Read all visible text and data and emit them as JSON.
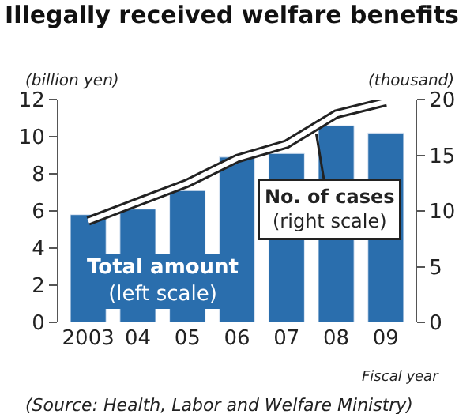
{
  "chart_data": {
    "type": "bar",
    "title": "Illegally received welfare benefits",
    "ylabel": "(billion yen)",
    "y2label": "(thousand)",
    "xlabel": "Fiscal year",
    "categories": [
      "2003",
      "04",
      "05",
      "06",
      "07",
      "08",
      "09"
    ],
    "series": [
      {
        "name": "Total amount\n(left scale)",
        "color": "#2a6ead",
        "values": [
          5.8,
          6.1,
          7.1,
          8.9,
          9.1,
          10.6,
          10.2
        ]
      },
      {
        "name": "No. of cases\n(right scale)",
        "type": "line",
        "axis": "y2",
        "color": "#222222",
        "values": [
          9.1,
          10.8,
          12.5,
          14.7,
          16.0,
          18.7,
          19.8
        ]
      }
    ],
    "ylim": [
      0,
      12
    ],
    "yticks": [
      0,
      2,
      4,
      6,
      8,
      10,
      12
    ],
    "y2lim": [
      0,
      20
    ],
    "y2ticks": [
      0,
      5,
      10,
      15,
      20
    ],
    "annotations": [
      "(Source: Health, Labor and Welfare Ministry)"
    ],
    "legend": false,
    "marker": "none"
  }
}
